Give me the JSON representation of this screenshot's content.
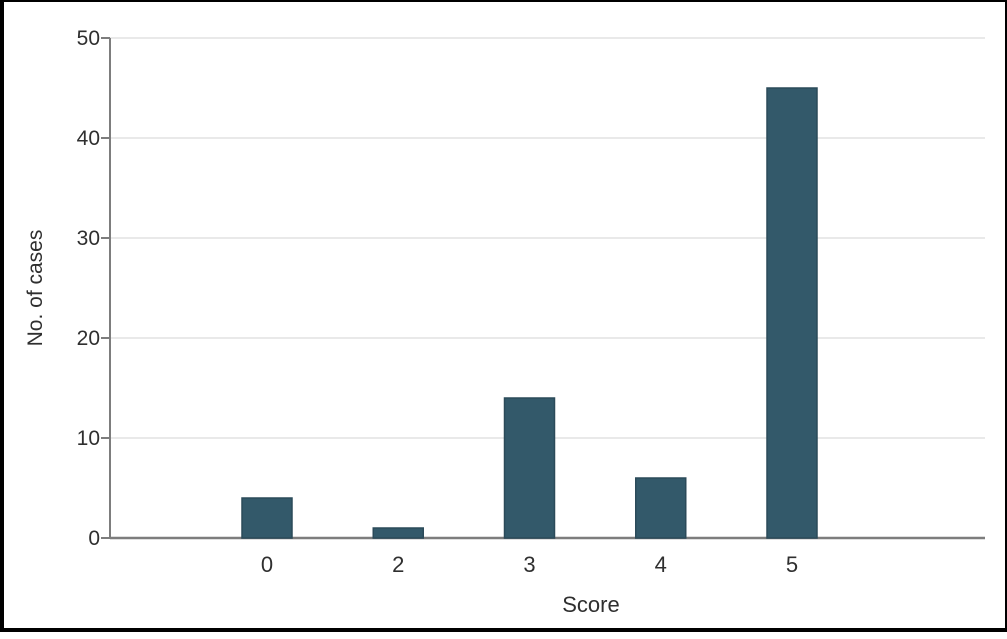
{
  "figure": {
    "background": "#ffffff",
    "frame_border_color": "#000000"
  },
  "chart_data": {
    "type": "bar",
    "title": "",
    "xlabel": "Score",
    "ylabel": "No. of cases",
    "categories": [
      "0",
      "2",
      "3",
      "4",
      "5"
    ],
    "values": [
      4,
      1,
      14,
      6,
      45
    ],
    "ylim": [
      0,
      50
    ],
    "yticks": [
      0,
      10,
      20,
      30,
      40,
      50
    ],
    "grid": "horizontal",
    "legend": "none",
    "bar_color": "#33596a",
    "bar_edge_color": "#2b4a59",
    "axis_color": "#7d7d7d",
    "gridline_color": "#e2e2e2",
    "text_color": "#2f2f2f"
  }
}
